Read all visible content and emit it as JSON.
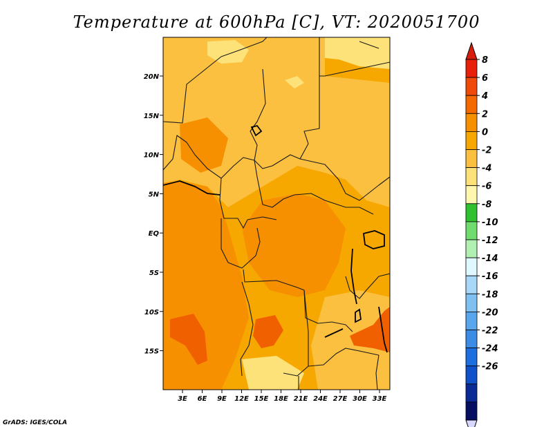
{
  "title": "Temperature at 600hPa [C], VT: 2020051700",
  "credit": "GrADS: IGES/COLA",
  "map": {
    "lon_labels": [
      "3E",
      "6E",
      "9E",
      "12E",
      "15E",
      "18E",
      "21E",
      "24E",
      "27E",
      "30E",
      "33E"
    ],
    "lat_labels": [
      "20N",
      "15N",
      "10N",
      "5N",
      "EQ",
      "5S",
      "10S",
      "15S"
    ],
    "base_color": "#f7a800",
    "colors": {
      "warm_yellow": "#fbc040",
      "pale_yellow": "#fde27a",
      "orange": "#f79000",
      "red_orange": "#f06000"
    }
  },
  "colorbar": {
    "labels": [
      "8",
      "6",
      "4",
      "2",
      "0",
      "-2",
      "-4",
      "-6",
      "-8",
      "-10",
      "-12",
      "-14",
      "-16",
      "-18",
      "-20",
      "-22",
      "-24",
      "-26"
    ],
    "colors": [
      "#e8200a",
      "#f04a0a",
      "#f46a00",
      "#f79000",
      "#f7a800",
      "#fbc040",
      "#fde27a",
      "#fff6b0",
      "#30c030",
      "#70dc70",
      "#b0f0b0",
      "#e0f8ff",
      "#a8d8f8",
      "#80c0f0",
      "#5aa6ec",
      "#3c8ce6",
      "#1e6ee0",
      "#1050c8",
      "#0a2a96",
      "#060e60"
    ],
    "top_triangle_color": "#d81e0a",
    "bottom_triangle_color": "#d8d8ff"
  }
}
